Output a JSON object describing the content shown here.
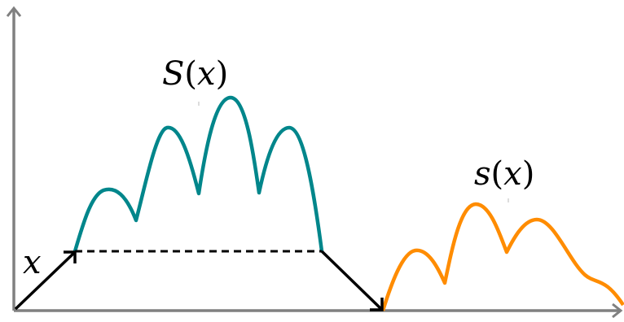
{
  "labels": {
    "big": {
      "name": "S",
      "arg": "x"
    },
    "small": {
      "name": "s",
      "arg": "x"
    },
    "x": "x"
  },
  "colors": {
    "axis": "#808080",
    "big_curve": "#00868B",
    "small_curve": "#FF8C00",
    "arrows": "#000000"
  }
}
